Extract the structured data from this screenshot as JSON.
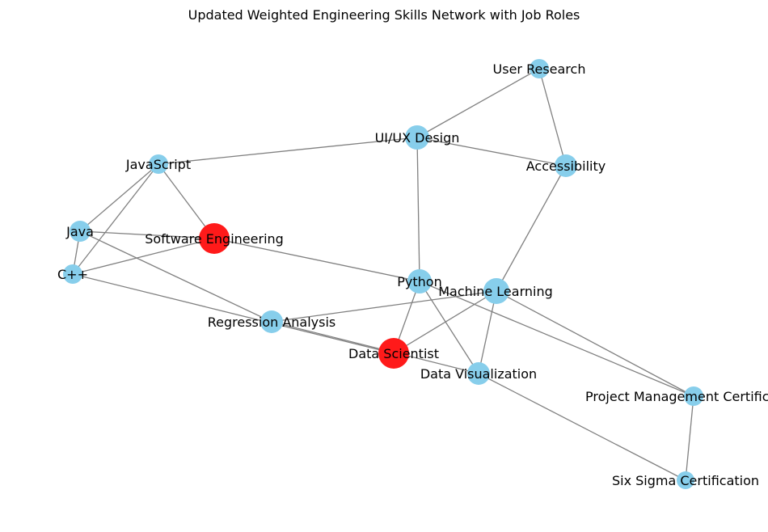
{
  "title": "Updated Weighted Engineering Skills Network with Job Roles",
  "colors": {
    "skill": "#87CEEB",
    "role": "#FF1A1A",
    "edge": "#808080"
  },
  "nodes": [
    {
      "id": "user-research",
      "label": "User Research",
      "kind": "skill"
    },
    {
      "id": "uiux-design",
      "label": "UI/UX Design",
      "kind": "skill"
    },
    {
      "id": "accessibility",
      "label": "Accessibility",
      "kind": "skill"
    },
    {
      "id": "javascript",
      "label": "JavaScript",
      "kind": "skill"
    },
    {
      "id": "java",
      "label": "Java",
      "kind": "skill"
    },
    {
      "id": "software-engineering",
      "label": "Software Engineering",
      "kind": "role"
    },
    {
      "id": "cpp",
      "label": "C++",
      "kind": "skill"
    },
    {
      "id": "python",
      "label": "Python",
      "kind": "skill"
    },
    {
      "id": "machine-learning",
      "label": "Machine Learning",
      "kind": "skill"
    },
    {
      "id": "regression-analysis",
      "label": "Regression Analysis",
      "kind": "skill"
    },
    {
      "id": "data-scientist",
      "label": "Data Scientist",
      "kind": "role"
    },
    {
      "id": "data-visualization",
      "label": "Data Visualization",
      "kind": "skill"
    },
    {
      "id": "project-management",
      "label": "Project Management Certification",
      "kind": "skill"
    },
    {
      "id": "six-sigma",
      "label": "Six Sigma Certification",
      "kind": "skill"
    }
  ],
  "edges": [
    [
      "user-research",
      "uiux-design"
    ],
    [
      "user-research",
      "accessibility"
    ],
    [
      "uiux-design",
      "accessibility"
    ],
    [
      "uiux-design",
      "javascript"
    ],
    [
      "uiux-design",
      "python"
    ],
    [
      "accessibility",
      "machine-learning"
    ],
    [
      "javascript",
      "java"
    ],
    [
      "javascript",
      "cpp"
    ],
    [
      "javascript",
      "software-engineering"
    ],
    [
      "java",
      "cpp"
    ],
    [
      "java",
      "software-engineering"
    ],
    [
      "java",
      "regression-analysis"
    ],
    [
      "cpp",
      "software-engineering"
    ],
    [
      "cpp",
      "data-scientist"
    ],
    [
      "software-engineering",
      "python"
    ],
    [
      "python",
      "data-scientist"
    ],
    [
      "python",
      "data-visualization"
    ],
    [
      "python",
      "project-management"
    ],
    [
      "machine-learning",
      "regression-analysis"
    ],
    [
      "machine-learning",
      "data-scientist"
    ],
    [
      "machine-learning",
      "data-visualization"
    ],
    [
      "machine-learning",
      "project-management"
    ],
    [
      "regression-analysis",
      "data-visualization"
    ],
    [
      "data-visualization",
      "six-sigma"
    ],
    [
      "project-management",
      "six-sigma"
    ]
  ]
}
